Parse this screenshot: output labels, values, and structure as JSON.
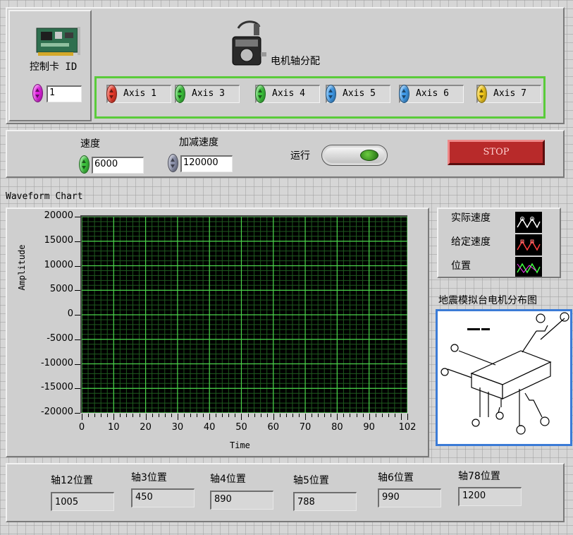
{
  "card": {
    "label": "控制卡 ID",
    "value": "1",
    "spinner_color": "#e020e0"
  },
  "motor": {
    "label": "电机轴分配"
  },
  "axes": [
    {
      "label": "Axis 1",
      "color": "#e83a2a"
    },
    {
      "label": "Axis 3",
      "color": "#3cc23c"
    },
    {
      "label": "Axis 4",
      "color": "#3cc23c"
    },
    {
      "label": "Axis 5",
      "color": "#3f9ae8"
    },
    {
      "label": "Axis 6",
      "color": "#3f9ae8"
    },
    {
      "label": "Axis 7",
      "color": "#f2c81c"
    }
  ],
  "controls": {
    "speed_label": "速度",
    "speed_value": "6000",
    "speed_color": "#3cc23c",
    "accel_label": "加减速度",
    "accel_value": "120000",
    "accel_color": "#8a8fa8",
    "run_label": "运行",
    "stop_label": "STOP"
  },
  "chart": {
    "panel_title": "Waveform Chart"
  },
  "chart_data": {
    "type": "line",
    "title": "",
    "xlabel": "Time",
    "ylabel": "Amplitude",
    "xlim": [
      0,
      102
    ],
    "ylim": [
      -20000,
      20000
    ],
    "x_ticks": [
      0,
      10,
      20,
      30,
      40,
      50,
      60,
      70,
      80,
      90,
      102
    ],
    "y_ticks": [
      20000,
      15000,
      10000,
      5000,
      0,
      -5000,
      -10000,
      -15000,
      -20000
    ],
    "grid": true,
    "grid_color": "#4bd44b",
    "background": "#000000",
    "legend_position": "right",
    "series": [
      {
        "name": "实际速度",
        "values": []
      },
      {
        "name": "给定速度",
        "values": []
      },
      {
        "name": "位置",
        "values": []
      }
    ]
  },
  "legend": {
    "items": [
      {
        "label": "实际速度",
        "color": "#ffffff"
      },
      {
        "label": "给定速度",
        "color": "#ff4040"
      },
      {
        "label": "位置",
        "color": "#40ff40"
      }
    ]
  },
  "diagram": {
    "title": "地震模拟台电机分布图"
  },
  "positions": [
    {
      "label": "轴12位置",
      "value": "1005"
    },
    {
      "label": "轴3位置",
      "value": "450"
    },
    {
      "label": "轴4位置",
      "value": "890"
    },
    {
      "label": "轴5位置",
      "value": "788"
    },
    {
      "label": "轴6位置",
      "value": "990"
    },
    {
      "label": "轴78位置",
      "value": "1200"
    }
  ]
}
